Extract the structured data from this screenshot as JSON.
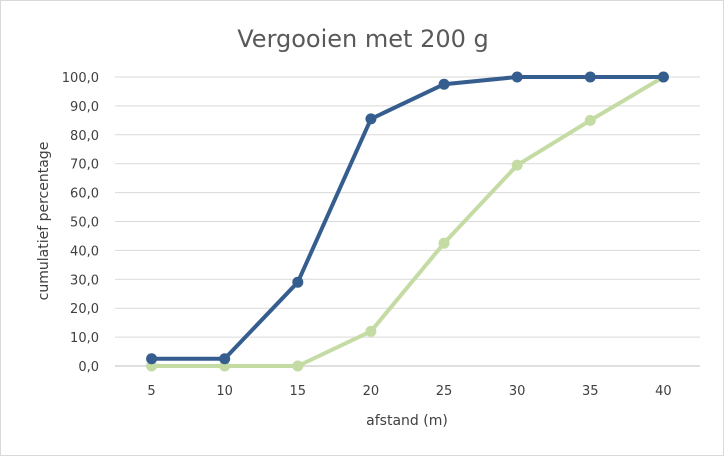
{
  "chart_data": {
    "type": "line",
    "title": "Vergooien met 200 g",
    "xlabel": "afstand (m)",
    "ylabel": "cumulatief percentage",
    "x": [
      5,
      10,
      15,
      20,
      25,
      30,
      35,
      40
    ],
    "x_tick_labels": [
      "5",
      "10",
      "15",
      "20",
      "25",
      "30",
      "35",
      "40"
    ],
    "ylim": [
      0,
      100
    ],
    "y_tick_labels": [
      "0,0",
      "10,0",
      "20,0",
      "30,0",
      "40,0",
      "50,0",
      "60,0",
      "70,0",
      "80,0",
      "90,0",
      "100,0"
    ],
    "grid": "horizontal",
    "legend": "none",
    "series": [
      {
        "color": "#355e8f",
        "values": [
          2.5,
          2.5,
          29,
          85.5,
          97.5,
          100,
          100,
          100
        ]
      },
      {
        "color": "#c5dba4",
        "values": [
          0,
          0,
          0,
          12,
          42.5,
          69.5,
          85,
          100
        ]
      }
    ]
  }
}
